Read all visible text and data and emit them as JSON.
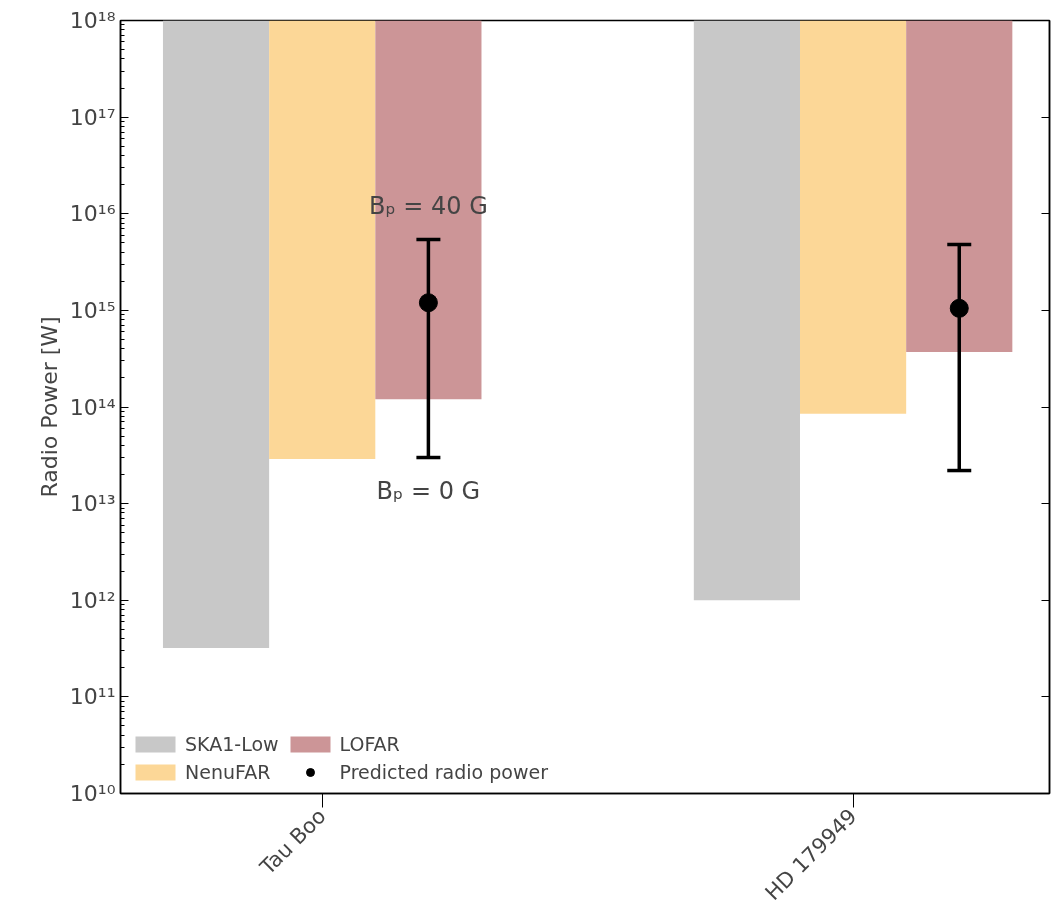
{
  "chart_data": {
    "type": "bar",
    "ylabel": "Radio Power [W]",
    "log": true,
    "categories": [
      "Tau Boo",
      "HD 179949"
    ],
    "series": [
      {
        "name": "SKA1-Low",
        "color": "#c8c8c8",
        "base": [
          320000000000.0,
          1000000000000.0
        ],
        "values": [
          9.9999968e+17,
          9.99999e+17
        ]
      },
      {
        "name": "NenuFAR",
        "color": "#fcd797",
        "base": [
          29000000000000.0,
          85000000000000.0
        ],
        "values": [
          9.99971e+17,
          9.99915e+17
        ]
      },
      {
        "name": "LOFAR",
        "color": "#cc9597",
        "base": [
          120000000000000.0,
          370000000000000.0
        ],
        "values": [
          9.9988e+17,
          9.9963e+17
        ]
      },
      {
        "name": "Predicted radio power",
        "type": "scatter",
        "color": "#000000",
        "marker": "circle",
        "x": [
          "Tau Boo",
          "HD 179949"
        ],
        "values": [
          1200000000000000.0,
          1050000000000000.0
        ],
        "errors": [
          [
            30000000000000.0,
            5400000000000000.0
          ],
          [
            22000000000000.0,
            4800000000000000.0
          ]
        ]
      }
    ],
    "ylim": [
      10000000000.0,
      1e+18
    ],
    "yticks": [
      {
        "value": 10000000000.0,
        "label": "10¹⁰"
      },
      {
        "value": 100000000000.0,
        "label": "10¹¹"
      },
      {
        "value": 1000000000000.0,
        "label": "10¹²"
      },
      {
        "value": 10000000000000.0,
        "label": "10¹³"
      },
      {
        "value": 100000000000000.0,
        "label": "10¹⁴"
      },
      {
        "value": 1000000000000000.0,
        "label": "10¹⁵"
      },
      {
        "value": 1e+16,
        "label": "10¹⁶"
      },
      {
        "value": 1e+17,
        "label": "10¹⁷"
      },
      {
        "value": 1e+18,
        "label": "10¹⁸"
      }
    ],
    "annotations": [
      "Bₚ = 40 G",
      "Bₚ = 0 G"
    ],
    "legend": "bottom left",
    "grid": false
  }
}
